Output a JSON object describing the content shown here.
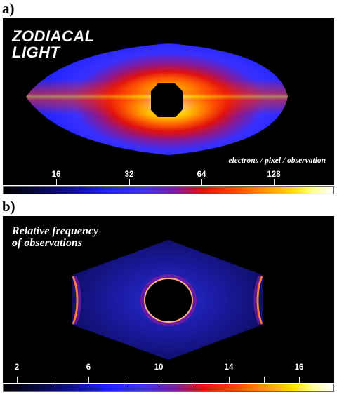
{
  "panels": [
    {
      "label": "a)",
      "title_lines": [
        "ZODIACAL",
        "LIGHT"
      ],
      "units": "electrons / pixel / observation",
      "tick_labels": [
        "16",
        "32",
        "64",
        "128"
      ]
    },
    {
      "label": "b)",
      "title_lines": [
        "Relative frequency",
        "of observations"
      ],
      "tick_labels": [
        "2",
        "6",
        "10",
        "14",
        "16"
      ]
    }
  ],
  "colors": {
    "background": "#000000",
    "colormap": [
      "#000000",
      "#0c0c8c",
      "#2020ff",
      "#7a1ca0",
      "#e01010",
      "#ff9900",
      "#ffe000",
      "#ffffff"
    ]
  }
}
